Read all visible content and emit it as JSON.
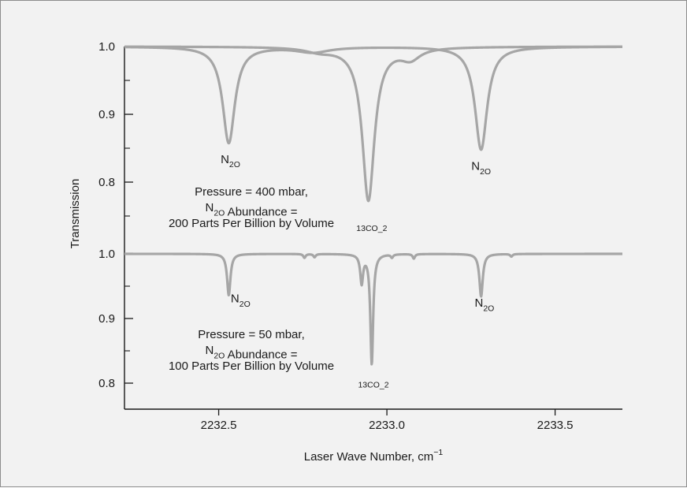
{
  "chart_data": {
    "type": "line",
    "xlabel": "Laser Wave Number, cm",
    "xlabel_sup": "−1",
    "ylabel": "Transmission",
    "xlim": [
      2232.22,
      2233.7
    ],
    "x_ticks": [
      {
        "value": 2232.5,
        "label": "2232.5"
      },
      {
        "value": 2233.0,
        "label": "2233.0"
      },
      {
        "value": 2233.5,
        "label": "2233.5"
      }
    ],
    "panels": [
      {
        "id": "top",
        "ylim": [
          0.72,
          1.02
        ],
        "y_ticks": [
          {
            "value": 1.0,
            "label": "1.0"
          },
          {
            "value": 0.9,
            "label": "0.9"
          },
          {
            "value": 0.8,
            "label": "0.8"
          }
        ],
        "y_minor_ticks": [
          0.95,
          0.85,
          0.75
        ],
        "info_lines": [
          "Pressure = 400 mbar,",
          "N_2O Abundance =",
          "200 Parts Per Billion by Volume"
        ],
        "series": [
          {
            "color": "#a6a6a6",
            "baseline": 1.0,
            "lines": [
              {
                "x0": 2232.53,
                "depth": 0.142,
                "width": 0.022
              },
              {
                "x0": 2233.28,
                "depth": 0.152,
                "width": 0.022
              },
              {
                "x0": 2232.78,
                "depth": 0.008,
                "width": 0.06
              }
            ]
          },
          {
            "color": "#a6a6a6",
            "baseline": 1.0,
            "lines": [
              {
                "x0": 2232.945,
                "depth": 0.226,
                "width": 0.022
              },
              {
                "x0": 2232.8,
                "depth": 0.006,
                "width": 0.05
              },
              {
                "x0": 2233.07,
                "depth": 0.016,
                "width": 0.035
              }
            ]
          }
        ],
        "annotations": [
          {
            "text": "N_2O",
            "x": 2232.535,
            "y": 0.828
          },
          {
            "text": "^13CO_2",
            "x": 2232.955,
            "y": 0.72
          },
          {
            "text": "N_2O",
            "x": 2233.28,
            "y": 0.818
          }
        ]
      },
      {
        "id": "bottom",
        "ylim": [
          0.77,
          1.0
        ],
        "y_ticks": [
          {
            "value": 1.0,
            "label": "1.0"
          },
          {
            "value": 0.9,
            "label": "0.9"
          },
          {
            "value": 0.8,
            "label": "0.8"
          }
        ],
        "y_minor_ticks": [
          0.95,
          0.85
        ],
        "info_lines": [
          "Pressure = 50 mbar,",
          "N_2O Abundance =",
          "100 Parts Per Billion by Volume"
        ],
        "series": [
          {
            "color": "#a6a6a6",
            "baseline": 1.0,
            "lines": [
              {
                "x0": 2232.53,
                "depth": 0.064,
                "width": 0.006
              },
              {
                "x0": 2232.925,
                "depth": 0.044,
                "width": 0.005
              },
              {
                "x0": 2232.955,
                "depth": 0.17,
                "width": 0.005
              },
              {
                "x0": 2233.28,
                "depth": 0.066,
                "width": 0.006
              },
              {
                "x0": 2232.755,
                "depth": 0.006,
                "width": 0.004
              },
              {
                "x0": 2232.785,
                "depth": 0.005,
                "width": 0.004
              },
              {
                "x0": 2233.015,
                "depth": 0.005,
                "width": 0.004
              },
              {
                "x0": 2233.08,
                "depth": 0.007,
                "width": 0.004
              },
              {
                "x0": 2233.37,
                "depth": 0.004,
                "width": 0.004
              }
            ]
          }
        ],
        "annotations": [
          {
            "text": "N_2O",
            "x": 2232.565,
            "y": 0.925
          },
          {
            "text": "^13CO_2",
            "x": 2232.96,
            "y": 0.785
          },
          {
            "text": "N_2O",
            "x": 2233.29,
            "y": 0.918
          }
        ]
      }
    ]
  }
}
